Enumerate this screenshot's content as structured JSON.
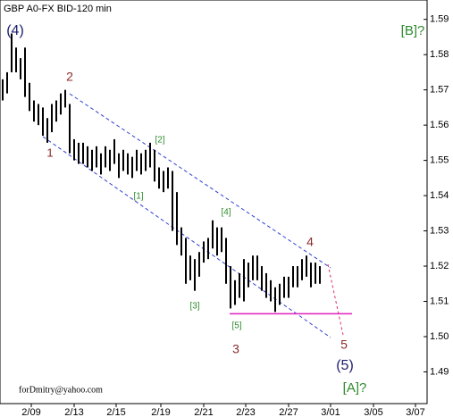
{
  "chart_data": {
    "type": "hlbar",
    "title": "GBP A0-FX BID-120 min",
    "color": "#000000",
    "x": [
      0,
      1,
      2,
      3,
      4,
      5,
      6,
      7,
      8,
      9,
      10,
      11,
      12,
      13,
      14,
      15,
      16,
      17,
      18,
      19,
      20,
      21,
      22,
      23,
      24,
      25,
      26,
      27,
      28,
      29,
      30,
      31,
      32,
      33,
      34,
      35,
      36,
      37,
      38,
      39,
      40,
      41,
      42,
      43,
      44,
      45,
      46,
      47,
      48,
      49,
      50,
      51,
      52,
      53,
      54,
      55,
      56,
      57,
      58,
      59,
      60,
      61,
      62,
      63,
      64,
      65,
      66,
      67,
      68,
      69,
      70,
      71
    ],
    "high": [
      1.573,
      1.575,
      1.586,
      1.582,
      1.579,
      1.582,
      1.572,
      1.567,
      1.566,
      1.565,
      1.562,
      1.566,
      1.567,
      1.569,
      1.57,
      1.566,
      1.556,
      1.555,
      1.555,
      1.554,
      1.553,
      1.554,
      1.552,
      1.554,
      1.553,
      1.556,
      1.552,
      1.553,
      1.552,
      1.551,
      1.553,
      1.552,
      1.553,
      1.555,
      1.553,
      1.548,
      1.547,
      1.548,
      1.547,
      1.541,
      1.531,
      1.528,
      1.523,
      1.522,
      1.524,
      1.527,
      1.528,
      1.533,
      1.531,
      1.531,
      1.528,
      1.52,
      1.516,
      1.518,
      1.522,
      1.521,
      1.523,
      1.523,
      1.52,
      1.518,
      1.516,
      1.514,
      1.515,
      1.517,
      1.517,
      1.52,
      1.52,
      1.522,
      1.523,
      1.521,
      1.521,
      1.52
    ],
    "low": [
      1.567,
      1.569,
      1.575,
      1.575,
      1.573,
      1.568,
      1.564,
      1.561,
      1.56,
      1.557,
      1.555,
      1.558,
      1.561,
      1.563,
      1.565,
      1.552,
      1.55,
      1.549,
      1.549,
      1.548,
      1.547,
      1.548,
      1.546,
      1.548,
      1.547,
      1.549,
      1.545,
      1.547,
      1.546,
      1.545,
      1.547,
      1.546,
      1.547,
      1.548,
      1.544,
      1.542,
      1.541,
      1.542,
      1.53,
      1.526,
      1.523,
      1.515,
      1.516,
      1.513,
      1.517,
      1.521,
      1.522,
      1.525,
      1.523,
      1.524,
      1.515,
      1.508,
      1.509,
      1.511,
      1.51,
      1.514,
      1.516,
      1.516,
      1.513,
      1.511,
      1.51,
      1.507,
      1.509,
      1.511,
      1.511,
      1.514,
      1.514,
      1.516,
      1.517,
      1.514,
      1.515,
      1.515
    ],
    "level": {
      "value": 1.5065,
      "color": "#e020c0"
    },
    "xlim": [
      -0.6,
      95
    ],
    "xticks": [
      {
        "value": 6.4,
        "label": "2/09"
      },
      {
        "value": 16,
        "label": "2/13"
      },
      {
        "value": 25.4,
        "label": "2/15"
      },
      {
        "value": 35.4,
        "label": "2/19"
      },
      {
        "value": 45,
        "label": "2/21"
      },
      {
        "value": 54.4,
        "label": "2/23"
      },
      {
        "value": 64,
        "label": "2/27"
      },
      {
        "value": 73.4,
        "label": "3/01"
      },
      {
        "value": 83,
        "label": "3/05"
      },
      {
        "value": 92.4,
        "label": "3/07"
      }
    ],
    "ylim": [
      1.481,
      1.5955
    ],
    "yticks": [
      1.49,
      {
        "value": 1.5,
        "label": "1.50"
      },
      1.51,
      1.52,
      1.53,
      1.54,
      1.55,
      1.56,
      1.57,
      1.58,
      1.59
    ],
    "annotations": [
      {
        "text": "(4)",
        "color": "#1c1c6e"
      },
      {
        "text": "2",
        "color": "#8b2a2a"
      },
      {
        "text": "1",
        "color": "#8b2a2a"
      },
      {
        "text": "[2]",
        "color": "#2e8b2e"
      },
      {
        "text": "[1]",
        "color": "#2e8b2e"
      },
      {
        "text": "[4]",
        "color": "#2e8b2e"
      },
      {
        "text": "[3]",
        "color": "#2e8b2e"
      },
      {
        "text": "[5]",
        "color": "#2e8b2e"
      },
      {
        "text": "3",
        "color": "#8b2a2a"
      },
      {
        "text": "4",
        "color": "#8b2a2a"
      },
      {
        "text": "5",
        "color": "#8b2a2a"
      },
      {
        "text": "(5)",
        "color": "#1c1c6e"
      },
      {
        "text": "[B]?",
        "color": "#2e8b2e"
      },
      {
        "text": "[A]?",
        "color": "#2e8b2e"
      },
      {
        "text": "forDmitry@yahoo.com",
        "color": "#000000"
      }
    ]
  }
}
